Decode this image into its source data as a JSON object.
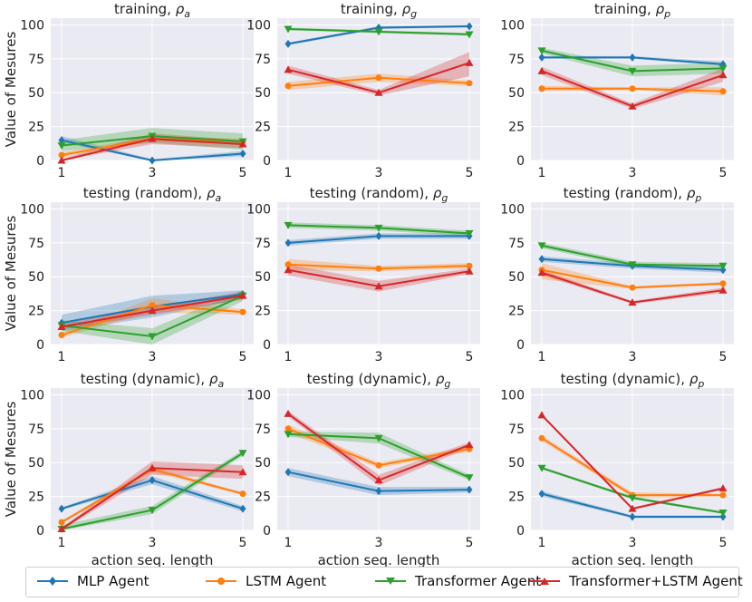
{
  "chart_data": {
    "type": "line",
    "x": [
      1,
      3,
      5
    ],
    "ylim": [
      0,
      105
    ],
    "yticks": [
      0,
      25,
      50,
      75,
      100
    ],
    "xlabel": "action seq. length",
    "ylabel": "Value of Mesures",
    "series_names": [
      "MLP Agent",
      "LSTM Agent",
      "Transformer Agent",
      "Transformer+LSTM Agent"
    ],
    "colors": [
      "#1f77b4",
      "#ff7f0e",
      "#2ca02c",
      "#d62728"
    ],
    "legend_position": "bottom-center",
    "grid": true,
    "panels": [
      {
        "title_prefix": "training, ",
        "sym": "ρ",
        "sub": "a",
        "series": [
          {
            "name": "MLP Agent",
            "values": [
              15,
              0,
              5
            ],
            "band": [
              [
                13,
                18
              ],
              [
                0,
                1
              ],
              [
                3,
                7
              ]
            ]
          },
          {
            "name": "LSTM Agent",
            "values": [
              4,
              16,
              14
            ],
            "band": [
              [
                2,
                6
              ],
              [
                14,
                18
              ],
              [
                12,
                16
              ]
            ]
          },
          {
            "name": "Transformer Agent",
            "values": [
              11,
              18,
              14
            ],
            "band": [
              [
                7,
                15
              ],
              [
                13,
                24
              ],
              [
                8,
                20
              ]
            ]
          },
          {
            "name": "Transformer+LSTM Agent",
            "values": [
              0,
              16,
              12
            ],
            "band": [
              [
                0,
                1
              ],
              [
                12,
                20
              ],
              [
                9,
                15
              ]
            ]
          }
        ]
      },
      {
        "title_prefix": "training, ",
        "sym": "ρ",
        "sub": "g",
        "series": [
          {
            "name": "MLP Agent",
            "values": [
              86,
              98,
              99
            ],
            "band": [
              [
                85,
                87
              ],
              [
                97,
                99
              ],
              [
                98,
                100
              ]
            ]
          },
          {
            "name": "LSTM Agent",
            "values": [
              55,
              61,
              57
            ],
            "band": [
              [
                52,
                58
              ],
              [
                58,
                64
              ],
              [
                55,
                59
              ]
            ]
          },
          {
            "name": "Transformer Agent",
            "values": [
              97,
              95,
              93
            ],
            "band": [
              [
                96,
                98
              ],
              [
                94,
                96
              ],
              [
                92,
                94
              ]
            ]
          },
          {
            "name": "Transformer+LSTM Agent",
            "values": [
              67,
              50,
              72
            ],
            "band": [
              [
                64,
                70
              ],
              [
                48,
                52
              ],
              [
                62,
                80
              ]
            ]
          }
        ]
      },
      {
        "title_prefix": "training, ",
        "sym": "ρ",
        "sub": "p",
        "series": [
          {
            "name": "MLP Agent",
            "values": [
              76,
              76,
              71
            ],
            "band": [
              [
                75,
                77
              ],
              [
                75,
                77
              ],
              [
                70,
                73
              ]
            ]
          },
          {
            "name": "LSTM Agent",
            "values": [
              53,
              53,
              51
            ],
            "band": [
              [
                51,
                55
              ],
              [
                52,
                54
              ],
              [
                48,
                54
              ]
            ]
          },
          {
            "name": "Transformer Agent",
            "values": [
              81,
              66,
              68
            ],
            "band": [
              [
                79,
                83
              ],
              [
                62,
                70
              ],
              [
                64,
                72
              ]
            ]
          },
          {
            "name": "Transformer+LSTM Agent",
            "values": [
              66,
              40,
              63
            ],
            "band": [
              [
                63,
                69
              ],
              [
                38,
                42
              ],
              [
                58,
                68
              ]
            ]
          }
        ]
      },
      {
        "title_prefix": "testing (random), ",
        "sym": "ρ",
        "sub": "a",
        "series": [
          {
            "name": "MLP Agent",
            "values": [
              16,
              28,
              37
            ],
            "band": [
              [
                10,
                22
              ],
              [
                20,
                36
              ],
              [
                34,
                40
              ]
            ]
          },
          {
            "name": "LSTM Agent",
            "values": [
              7,
              29,
              24
            ],
            "band": [
              [
                5,
                9
              ],
              [
                24,
                34
              ],
              [
                22,
                26
              ]
            ]
          },
          {
            "name": "Transformer Agent",
            "values": [
              14,
              6,
              36
            ],
            "band": [
              [
                10,
                18
              ],
              [
                0,
                12
              ],
              [
                32,
                40
              ]
            ]
          },
          {
            "name": "Transformer+LSTM Agent",
            "values": [
              13,
              25,
              36
            ],
            "band": [
              [
                11,
                15
              ],
              [
                22,
                28
              ],
              [
                33,
                39
              ]
            ]
          }
        ]
      },
      {
        "title_prefix": "testing (random), ",
        "sym": "ρ",
        "sub": "g",
        "series": [
          {
            "name": "MLP Agent",
            "values": [
              75,
              80,
              80
            ],
            "band": [
              [
                73,
                77
              ],
              [
                78,
                82
              ],
              [
                78,
                82
              ]
            ]
          },
          {
            "name": "LSTM Agent",
            "values": [
              59,
              56,
              58
            ],
            "band": [
              [
                55,
                63
              ],
              [
                54,
                58
              ],
              [
                56,
                60
              ]
            ]
          },
          {
            "name": "Transformer Agent",
            "values": [
              88,
              86,
              82
            ],
            "band": [
              [
                86,
                90
              ],
              [
                84,
                88
              ],
              [
                80,
                84
              ]
            ]
          },
          {
            "name": "Transformer+LSTM Agent",
            "values": [
              55,
              43,
              54
            ],
            "band": [
              [
                51,
                59
              ],
              [
                39,
                47
              ],
              [
                52,
                56
              ]
            ]
          }
        ]
      },
      {
        "title_prefix": "testing (random), ",
        "sym": "ρ",
        "sub": "p",
        "series": [
          {
            "name": "MLP Agent",
            "values": [
              63,
              58,
              55
            ],
            "band": [
              [
                61,
                65
              ],
              [
                56,
                60
              ],
              [
                53,
                57
              ]
            ]
          },
          {
            "name": "LSTM Agent",
            "values": [
              55,
              42,
              45
            ],
            "band": [
              [
                48,
                60
              ],
              [
                41,
                43
              ],
              [
                44,
                46
              ]
            ]
          },
          {
            "name": "Transformer Agent",
            "values": [
              73,
              59,
              58
            ],
            "band": [
              [
                71,
                75
              ],
              [
                57,
                61
              ],
              [
                56,
                60
              ]
            ]
          },
          {
            "name": "Transformer+LSTM Agent",
            "values": [
              53,
              31,
              40
            ],
            "band": [
              [
                51,
                55
              ],
              [
                30,
                32
              ],
              [
                38,
                42
              ]
            ]
          }
        ]
      },
      {
        "title_prefix": "testing (dynamic), ",
        "sym": "ρ",
        "sub": "a",
        "series": [
          {
            "name": "MLP Agent",
            "values": [
              16,
              37,
              16
            ],
            "band": [
              [
                15,
                17
              ],
              [
                34,
                40
              ],
              [
                14,
                18
              ]
            ]
          },
          {
            "name": "LSTM Agent",
            "values": [
              6,
              45,
              27
            ],
            "band": [
              [
                5,
                7
              ],
              [
                43,
                47
              ],
              [
                26,
                28
              ]
            ]
          },
          {
            "name": "Transformer Agent",
            "values": [
              1,
              15,
              57
            ],
            "band": [
              [
                0,
                4
              ],
              [
                12,
                18
              ],
              [
                55,
                59
              ]
            ]
          },
          {
            "name": "Transformer+LSTM Agent",
            "values": [
              1,
              46,
              43
            ],
            "band": [
              [
                0,
                2
              ],
              [
                41,
                51
              ],
              [
                38,
                48
              ]
            ]
          }
        ]
      },
      {
        "title_prefix": "testing (dynamic), ",
        "sym": "ρ",
        "sub": "g",
        "series": [
          {
            "name": "MLP Agent",
            "values": [
              43,
              29,
              30
            ],
            "band": [
              [
                40,
                46
              ],
              [
                26,
                32
              ],
              [
                28,
                32
              ]
            ]
          },
          {
            "name": "LSTM Agent",
            "values": [
              75,
              48,
              60
            ],
            "band": [
              [
                72,
                78
              ],
              [
                46,
                50
              ],
              [
                58,
                62
              ]
            ]
          },
          {
            "name": "Transformer Agent",
            "values": [
              71,
              68,
              39
            ],
            "band": [
              [
                69,
                73
              ],
              [
                64,
                72
              ],
              [
                37,
                41
              ]
            ]
          },
          {
            "name": "Transformer+LSTM Agent",
            "values": [
              86,
              37,
              63
            ],
            "band": [
              [
                84,
                88
              ],
              [
                33,
                41
              ],
              [
                61,
                65
              ]
            ]
          }
        ]
      },
      {
        "title_prefix": "testing (dynamic), ",
        "sym": "ρ",
        "sub": "p",
        "series": [
          {
            "name": "MLP Agent",
            "values": [
              27,
              10,
              10
            ],
            "band": [
              [
                25,
                29
              ],
              [
                9,
                11
              ],
              [
                9,
                11
              ]
            ]
          },
          {
            "name": "LSTM Agent",
            "values": [
              68,
              26,
              26
            ],
            "band": [
              [
                66,
                70
              ],
              [
                24,
                28
              ],
              [
                25,
                27
              ]
            ]
          },
          {
            "name": "Transformer Agent",
            "values": [
              46,
              24,
              13
            ],
            "band": [
              [
                45,
                47
              ],
              [
                23,
                25
              ],
              [
                12,
                14
              ]
            ]
          },
          {
            "name": "Transformer+LSTM Agent",
            "values": [
              85,
              16,
              31
            ],
            "band": [
              [
                84,
                86
              ],
              [
                15,
                17
              ],
              [
                30,
                32
              ]
            ]
          }
        ]
      }
    ]
  }
}
